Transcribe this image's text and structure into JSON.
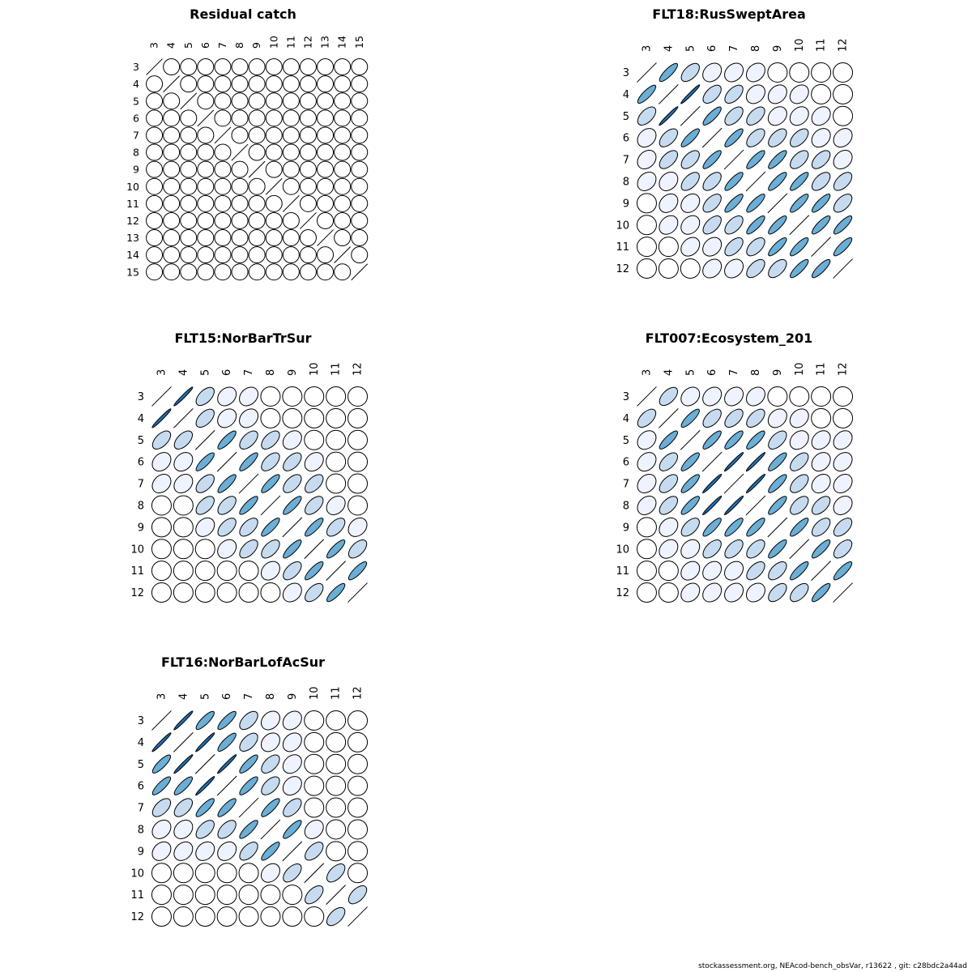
{
  "footer": "stockassessment.org, NEAcod-bench_obsVar, r13622 , git: c28bdc2a44ad",
  "colors": {
    "level0": "#ffffff",
    "level1": "#eff3ff",
    "level2": "#c6dbef",
    "level3": "#6baed6",
    "level4": "#2171b5"
  },
  "chart_data": [
    {
      "type": "heatmap",
      "title": "Residual catch",
      "labels": [
        "3",
        "4",
        "5",
        "6",
        "7",
        "8",
        "9",
        "10",
        "11",
        "12",
        "13",
        "14",
        "15"
      ],
      "upper": [
        []
      ]
    },
    {
      "type": "heatmap",
      "title": "FLT18:RusSweptArea",
      "labels": [
        "3",
        "4",
        "5",
        "6",
        "7",
        "8",
        "9",
        "10",
        "11",
        "12"
      ],
      "upper": [
        [
          3,
          2,
          1,
          1,
          1,
          0,
          0,
          0,
          0
        ],
        [
          4,
          2,
          2,
          1,
          1,
          1,
          0,
          0
        ],
        [
          3,
          2,
          2,
          1,
          1,
          1,
          0
        ],
        [
          3,
          2,
          2,
          2,
          1,
          1
        ],
        [
          3,
          3,
          2,
          2,
          1
        ],
        [
          3,
          3,
          2,
          2
        ],
        [
          3,
          3,
          2
        ],
        [
          3,
          3
        ],
        [
          3
        ]
      ]
    },
    {
      "type": "heatmap",
      "title": "FLT15:NorBarTrSur",
      "labels": [
        "3",
        "4",
        "5",
        "6",
        "7",
        "8",
        "9",
        "10",
        "11",
        "12"
      ],
      "upper": [
        [
          4,
          2,
          1,
          1,
          0,
          0,
          0,
          0,
          0
        ],
        [
          2,
          1,
          1,
          0,
          0,
          0,
          0,
          0
        ],
        [
          3,
          2,
          2,
          1,
          0,
          0,
          0
        ],
        [
          3,
          2,
          2,
          1,
          0,
          0
        ],
        [
          3,
          2,
          2,
          0,
          0
        ],
        [
          3,
          2,
          1,
          0
        ],
        [
          3,
          2,
          1
        ],
        [
          3,
          2
        ],
        [
          3
        ]
      ]
    },
    {
      "type": "heatmap",
      "title": "FLT007:Ecosystem_201",
      "labels": [
        "3",
        "4",
        "5",
        "6",
        "7",
        "8",
        "9",
        "10",
        "11",
        "12"
      ],
      "upper": [
        [
          2,
          1,
          1,
          1,
          1,
          0,
          0,
          0,
          0
        ],
        [
          3,
          2,
          2,
          2,
          1,
          1,
          0,
          0
        ],
        [
          3,
          3,
          3,
          2,
          1,
          1,
          1
        ],
        [
          4,
          4,
          3,
          2,
          1,
          1
        ],
        [
          4,
          3,
          2,
          1,
          1
        ],
        [
          3,
          2,
          2,
          1
        ],
        [
          3,
          2,
          2
        ],
        [
          3,
          2
        ],
        [
          3
        ]
      ]
    },
    {
      "type": "heatmap",
      "title": "FLT16:NorBarLofAcSur",
      "labels": [
        "3",
        "4",
        "5",
        "6",
        "7",
        "8",
        "9",
        "10",
        "11",
        "12"
      ],
      "upper": [
        [
          4,
          3,
          3,
          2,
          1,
          1,
          0,
          0,
          0
        ],
        [
          4,
          3,
          2,
          1,
          1,
          0,
          0,
          0
        ],
        [
          4,
          3,
          2,
          1,
          0,
          0,
          0
        ],
        [
          3,
          2,
          1,
          0,
          0,
          0
        ],
        [
          3,
          2,
          0,
          0,
          0
        ],
        [
          3,
          1,
          0,
          0
        ],
        [
          2,
          0,
          0
        ],
        [
          2,
          0
        ],
        [
          2
        ]
      ]
    }
  ]
}
